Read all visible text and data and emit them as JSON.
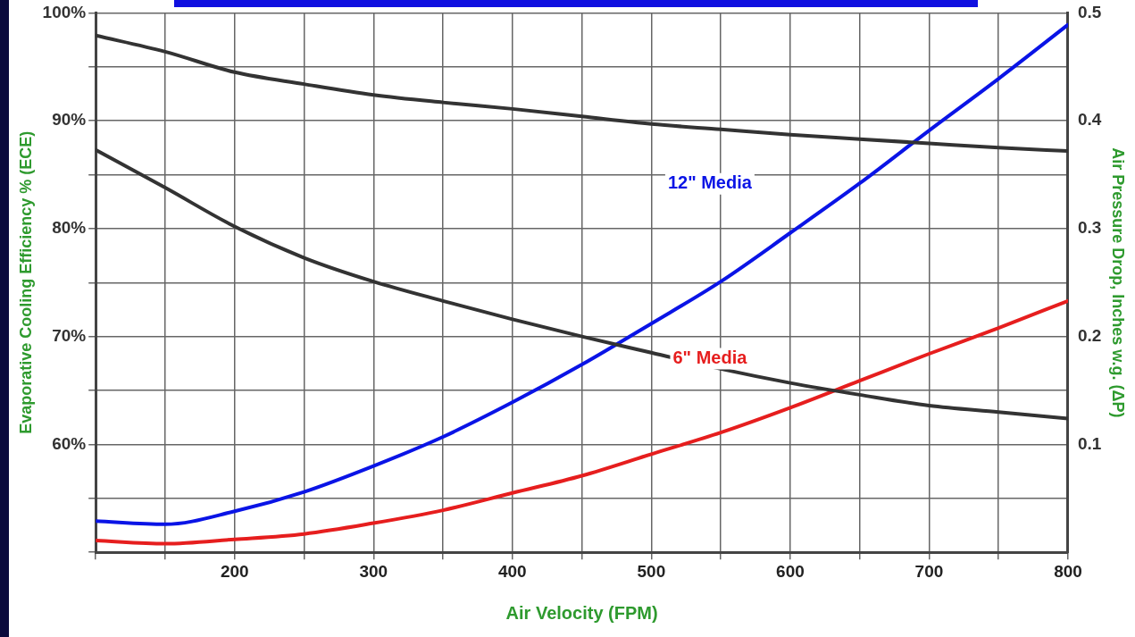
{
  "chart_data": {
    "type": "line",
    "xlabel": "Air Velocity (FPM)",
    "ylabel": "Evaporative Cooling Efficiency % (ECE)",
    "y2label": "Air Pressure Drop, Inches w.g. (ΔP)",
    "x": [
      100,
      150,
      200,
      250,
      300,
      350,
      400,
      450,
      500,
      550,
      600,
      650,
      700,
      750,
      800
    ],
    "series": [
      {
        "color": "#333333",
        "values": [
          97.9,
          96.4,
          94.5,
          93.4,
          92.4,
          91.7,
          91.1,
          90.4,
          89.7,
          89.2,
          88.7,
          88.3,
          87.9,
          87.5,
          87.2
        ]
      },
      {
        "color": "#333333",
        "values": [
          87.3,
          83.8,
          80.2,
          77.3,
          75.1,
          73.3,
          71.6,
          70.0,
          68.5,
          67.0,
          65.7,
          64.6,
          63.6,
          63.0,
          62.4
        ]
      },
      {
        "name": "12\" Media",
        "color": "#0a14e6",
        "axis": "y2",
        "values": [
          0.029,
          0.026,
          0.038,
          0.056,
          0.08,
          0.107,
          0.139,
          0.174,
          0.212,
          0.251,
          0.296,
          0.342,
          0.391,
          0.439,
          0.489
        ]
      },
      {
        "name": "6\" Media",
        "color": "#e61e1e",
        "axis": "y2",
        "values": [
          0.011,
          0.008,
          0.012,
          0.017,
          0.027,
          0.039,
          0.055,
          0.071,
          0.091,
          0.111,
          0.134,
          0.159,
          0.184,
          0.208,
          0.233
        ]
      }
    ],
    "xlim": [
      100,
      800
    ],
    "xticks": [
      {
        "value": 100,
        "label": null
      },
      {
        "value": 150,
        "label": null
      },
      200,
      {
        "value": 250,
        "label": null
      },
      300,
      {
        "value": 350,
        "label": null
      },
      400,
      {
        "value": 450,
        "label": null
      },
      500,
      {
        "value": 550,
        "label": null
      },
      600,
      {
        "value": 650,
        "label": null
      },
      700,
      {
        "value": 750,
        "label": null
      },
      800
    ],
    "ylim": [
      50,
      100
    ],
    "yticks": [
      {
        "value": 50,
        "label": null
      },
      {
        "value": 55,
        "label": null
      },
      {
        "value": 60,
        "label": "60%"
      },
      {
        "value": 65,
        "label": null
      },
      {
        "value": 70,
        "label": "70%"
      },
      {
        "value": 75,
        "label": null
      },
      {
        "value": 80,
        "label": "80%"
      },
      {
        "value": 85,
        "label": null
      },
      {
        "value": 90,
        "label": "90%"
      },
      {
        "value": 95,
        "label": null
      },
      {
        "value": 100,
        "label": "100%"
      }
    ],
    "y2lim": [
      0,
      0.5
    ],
    "y2ticks": [
      0.1,
      0.2,
      0.3,
      0.4,
      0.5
    ],
    "grid": true,
    "legend": false,
    "marker": "none",
    "line_style": "solid"
  }
}
